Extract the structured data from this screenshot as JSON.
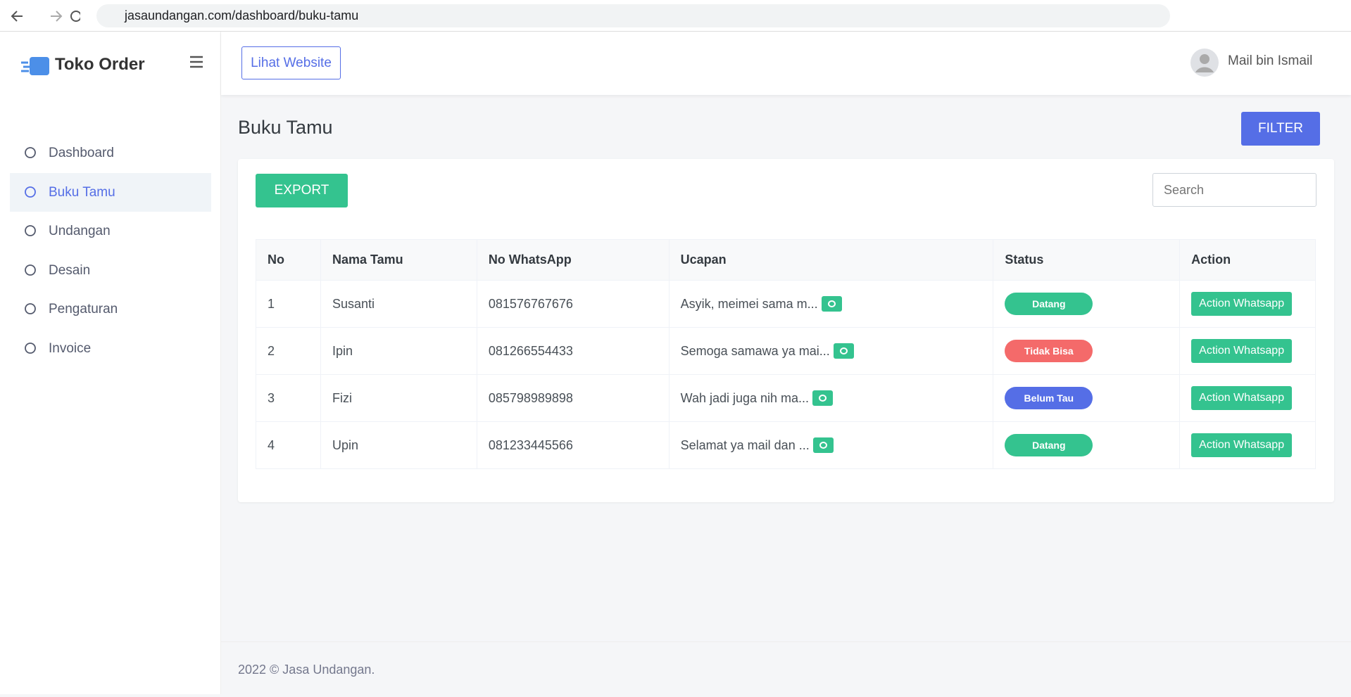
{
  "browser": {
    "url": "jasaundangan.com/dashboard/buku-tamu"
  },
  "sidebar": {
    "brand": "Toko Order",
    "menu": [
      "Dashboard",
      "Buku Tamu",
      "Undangan",
      "Desain",
      "Pengaturan",
      "Invoice"
    ]
  },
  "header": {
    "website_button": "Lihat Website",
    "user": "Mail bin Ismail"
  },
  "page": {
    "title": "Buku Tamu",
    "filter": "FILTER",
    "export": "EXPORT",
    "search": "Search"
  },
  "table": {
    "columns": [
      "No",
      "Nama Tamu",
      "No WhatsApp",
      "Ucapan",
      "Status",
      "Action"
    ],
    "rows": [
      {
        "no": 1,
        "nama": "Susanti",
        "wa": "081576767676",
        "ucapan": "Asyik, meimei sama m...",
        "status": "Datang",
        "status_color": "#34c38f",
        "action": "Action Whatsapp"
      },
      {
        "no": 2,
        "nama": "Ipin",
        "wa": "081266554433",
        "ucapan": "Semoga samawa ya mai...",
        "status": "Tidak Bisa",
        "status_color": "#f46a6a",
        "action": "Action Whatsapp"
      },
      {
        "no": 3,
        "nama": "Fizi",
        "wa": "085798989898",
        "ucapan": "Wah jadi juga nih ma...",
        "status": "Belum Tau",
        "status_color": "#556ee6",
        "action": "Action Whatsapp"
      },
      {
        "no": 4,
        "nama": "Upin",
        "wa": "081233445566",
        "ucapan": "Selamat ya mail dan ...",
        "status": "Datang",
        "status_color": "#34c38f",
        "action": "Action Whatsapp"
      }
    ]
  },
  "footer": {
    "text": "2022 © Jasa Undangan."
  }
}
